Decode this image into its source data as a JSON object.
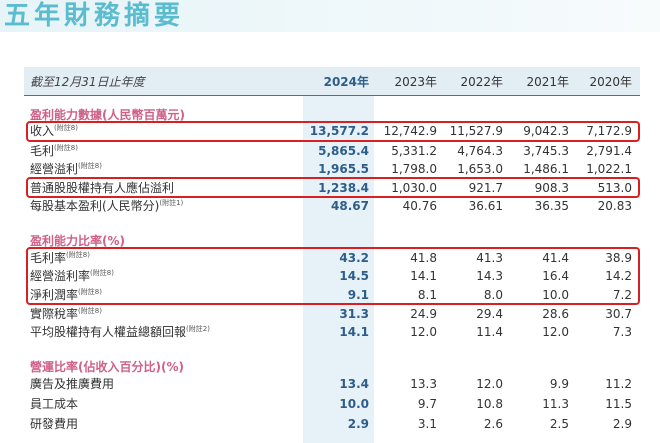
{
  "title": "五年財務摘要",
  "header": {
    "label": "截至12月31日止年度",
    "years": [
      "2024年",
      "2023年",
      "2022年",
      "2021年",
      "2020年"
    ]
  },
  "sections": [
    {
      "title": "盈利能力數據(人民幣百萬元)",
      "rows": [
        {
          "label": "收入",
          "note": "(附註8)",
          "values": [
            "13,577.2",
            "12,742.9",
            "11,527.9",
            "9,042.3",
            "7,172.9"
          ],
          "highlighted": true
        },
        {
          "label": "毛利",
          "note": "(附註8)",
          "values": [
            "5,865.4",
            "5,331.2",
            "4,764.3",
            "3,745.3",
            "2,791.4"
          ]
        },
        {
          "label": "經營溢利",
          "note": "(附註8)",
          "values": [
            "1,965.5",
            "1,798.0",
            "1,653.0",
            "1,486.1",
            "1,022.1"
          ]
        },
        {
          "label": "普通股股權持有人應佔溢利",
          "note": "",
          "values": [
            "1,238.4",
            "1,030.0",
            "921.7",
            "908.3",
            "513.0"
          ],
          "highlighted": true
        },
        {
          "label": "每股基本盈利(人民幣分)",
          "note": "(附註1)",
          "values": [
            "48.67",
            "40.76",
            "36.61",
            "36.35",
            "20.83"
          ]
        }
      ]
    },
    {
      "title": "盈利能力比率(%)",
      "rows": [
        {
          "label": "毛利率",
          "note": "(附註8)",
          "values": [
            "43.2",
            "41.8",
            "41.3",
            "41.4",
            "38.9"
          ],
          "highlighted": true
        },
        {
          "label": "經營溢利率",
          "note": "(附註8)",
          "values": [
            "14.5",
            "14.1",
            "14.3",
            "16.4",
            "14.2"
          ],
          "highlighted": true
        },
        {
          "label": "淨利潤率",
          "note": "(附註8)",
          "values": [
            "9.1",
            "8.1",
            "8.0",
            "10.0",
            "7.2"
          ],
          "highlighted": true
        },
        {
          "label": "實際稅率",
          "note": "(附註8)",
          "values": [
            "31.3",
            "24.9",
            "29.4",
            "28.6",
            "30.7"
          ]
        },
        {
          "label": "平均股權持有人權益總額回報",
          "note": "(附註2)",
          "values": [
            "14.1",
            "12.0",
            "11.4",
            "12.0",
            "7.3"
          ]
        }
      ]
    },
    {
      "title": "營運比率(佔收入百分比)(%)",
      "rows": [
        {
          "label": "廣告及推廣費用",
          "note": "",
          "values": [
            "13.4",
            "13.3",
            "12.0",
            "9.9",
            "11.2"
          ]
        },
        {
          "label": "員工成本",
          "note": "",
          "values": [
            "10.0",
            "9.7",
            "10.8",
            "11.3",
            "11.5"
          ]
        },
        {
          "label": "研發費用",
          "note": "",
          "values": [
            "2.9",
            "3.1",
            "2.6",
            "2.5",
            "2.9"
          ]
        }
      ]
    }
  ],
  "colors": {
    "title": "#5cbccf",
    "section_title": "#d06088",
    "current_year_value": "#2d5d8a",
    "highlight_column": "#e7f1f8",
    "annotation_box": "#d92020"
  }
}
